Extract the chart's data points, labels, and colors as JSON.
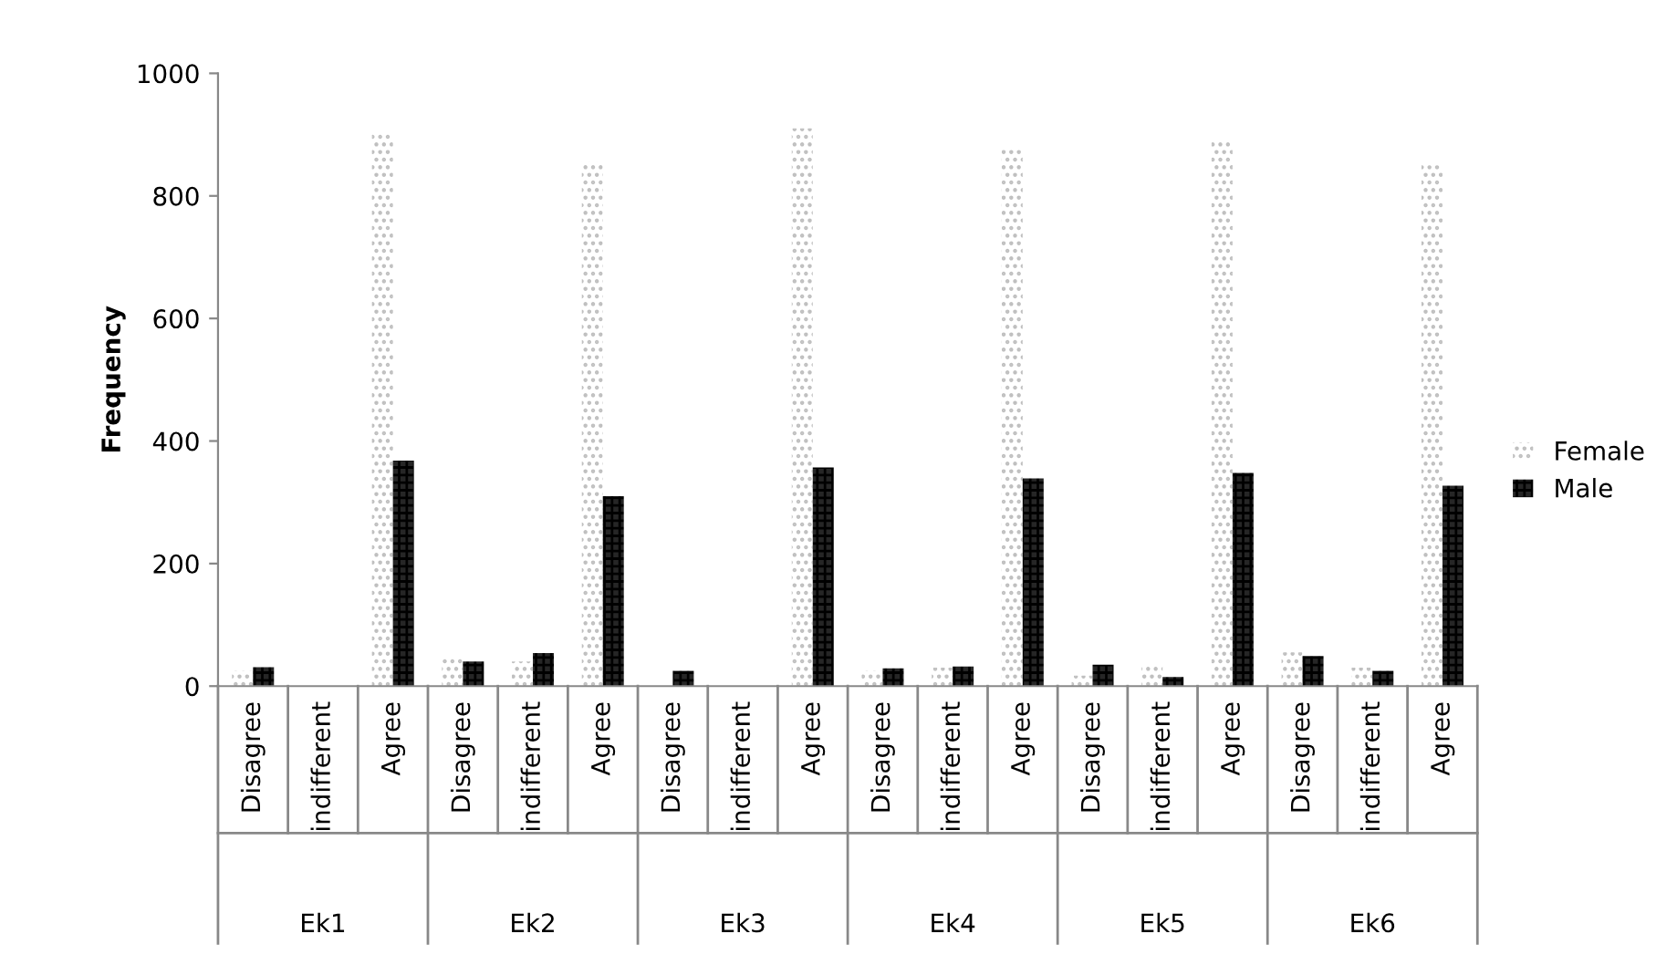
{
  "chart_data": {
    "type": "bar",
    "ylabel": "Frequency",
    "categories": [
      "Disagree",
      "indifferent",
      "Agree",
      "Disagree",
      "indifferent",
      "Agree",
      "Disagree",
      "indifferent",
      "Agree",
      "Disagree",
      "indifferent",
      "Agree",
      "Disagree",
      "indifferent",
      "Agree",
      "Disagree",
      "indifferent",
      "Agree"
    ],
    "annotations": [
      "Ek1",
      "Ek2",
      "Ek3",
      "Ek4",
      "Ek5",
      "Ek6"
    ],
    "series": [
      {
        "name": "Female",
        "color": "#bfbfbf",
        "values": [
          25,
          0,
          905,
          45,
          40,
          855,
          0,
          0,
          910,
          25,
          30,
          880,
          17,
          32,
          890,
          55,
          30,
          850
        ]
      },
      {
        "name": "Male",
        "color": "#262626",
        "values": [
          31,
          0,
          368,
          40,
          54,
          310,
          25,
          0,
          357,
          29,
          32,
          339,
          35,
          15,
          348,
          49,
          25,
          327
        ]
      }
    ],
    "ylim": [
      0,
      1000
    ],
    "yticks": [
      0,
      200,
      400,
      600,
      800,
      1000
    ],
    "grid": false,
    "legend": "right"
  }
}
